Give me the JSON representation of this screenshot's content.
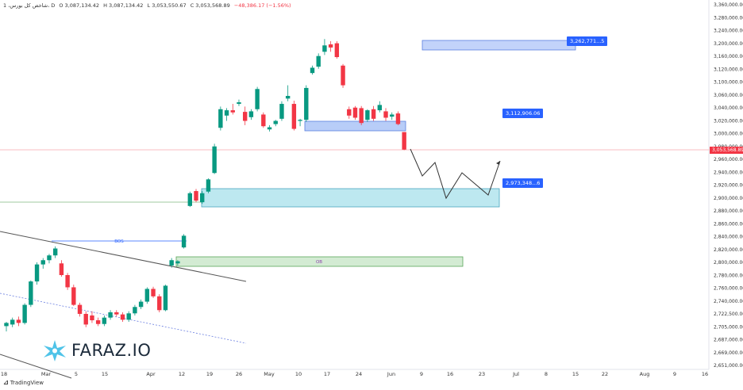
{
  "header": {
    "symbol": "1 ،شاخص کل بورس، D",
    "open": "O 3,087,134.42",
    "high": "H 3,087,134.42",
    "low": "L 3,053,550.67",
    "close": "C 3,053,568.89",
    "change": "−48,386.17 (−1.56%)"
  },
  "footer": {
    "tradingview": "TradingView"
  },
  "brand": {
    "text": "FARAZ.IO"
  },
  "chart_data": {
    "type": "candlestick",
    "y_ticks": [
      "3,360,000.00",
      "3,280,000.00",
      "3,240,000.00",
      "3,200,000.00",
      "3,160,000.00",
      "3,120,000.00",
      "3,100,000.00",
      "3,060,000.00",
      "3,040,000.00",
      "3,020,000.00",
      "3,000,000.00",
      "2,980,000.00",
      "2,960,000.00",
      "2,940,000.00",
      "2,920,000.00",
      "2,900,000.00",
      "2,880,000.00",
      "2,860,000.00",
      "2,840,000.00",
      "2,820,000.00",
      "2,800,000.00",
      "2,780,000.00",
      "2,760,000.00",
      "2,740,000.00",
      "2,722,500.00",
      "2,705,000.00",
      "2,687,000.00",
      "2,669,000.00",
      "2,651,000.00"
    ],
    "x_ticks": [
      "18",
      "Mar",
      "5",
      "15",
      "Apr",
      "12",
      "19",
      "26",
      "May",
      "10",
      "17",
      "24",
      "Jun",
      "9",
      "16",
      "23",
      "Jul",
      "8",
      "15",
      "22",
      "Aug",
      "9",
      "16"
    ],
    "last_price": "3,053,568.89",
    "labels": {
      "target_high": "3,262,771...5",
      "target_mid": "3,112,906.06",
      "target_low": "2,973,348...6",
      "bos": "BOS",
      "ob": "OB"
    },
    "colors": {
      "up": "#089981",
      "down": "#f23645",
      "zone_blue": "#b8cdf8",
      "zone_cyan": "#b6e7ef",
      "zone_green": "#cfe9cf",
      "label": "#2962ff"
    },
    "candles": [
      {
        "o": 2722,
        "h": 2730,
        "l": 2712,
        "c": 2728
      },
      {
        "o": 2725,
        "h": 2738,
        "l": 2720,
        "c": 2734
      },
      {
        "o": 2734,
        "h": 2740,
        "l": 2722,
        "c": 2728
      },
      {
        "o": 2728,
        "h": 2765,
        "l": 2725,
        "c": 2762
      },
      {
        "o": 2762,
        "h": 2808,
        "l": 2758,
        "c": 2806
      },
      {
        "o": 2806,
        "h": 2842,
        "l": 2800,
        "c": 2838
      },
      {
        "o": 2838,
        "h": 2850,
        "l": 2830,
        "c": 2846
      },
      {
        "o": 2846,
        "h": 2858,
        "l": 2840,
        "c": 2855
      },
      {
        "o": 2855,
        "h": 2872,
        "l": 2850,
        "c": 2868
      },
      {
        "o": 2840,
        "h": 2846,
        "l": 2815,
        "c": 2818
      },
      {
        "o": 2818,
        "h": 2822,
        "l": 2790,
        "c": 2795
      },
      {
        "o": 2795,
        "h": 2800,
        "l": 2760,
        "c": 2762
      },
      {
        "o": 2762,
        "h": 2766,
        "l": 2740,
        "c": 2745
      },
      {
        "o": 2745,
        "h": 2750,
        "l": 2720,
        "c": 2725
      },
      {
        "o": 2742,
        "h": 2750,
        "l": 2728,
        "c": 2733
      },
      {
        "o": 2733,
        "h": 2738,
        "l": 2722,
        "c": 2726
      },
      {
        "o": 2726,
        "h": 2742,
        "l": 2722,
        "c": 2738
      },
      {
        "o": 2738,
        "h": 2752,
        "l": 2734,
        "c": 2748
      },
      {
        "o": 2748,
        "h": 2752,
        "l": 2740,
        "c": 2744
      },
      {
        "o": 2744,
        "h": 2748,
        "l": 2730,
        "c": 2734
      },
      {
        "o": 2734,
        "h": 2750,
        "l": 2730,
        "c": 2746
      },
      {
        "o": 2746,
        "h": 2762,
        "l": 2742,
        "c": 2758
      },
      {
        "o": 2758,
        "h": 2772,
        "l": 2754,
        "c": 2768
      },
      {
        "o": 2768,
        "h": 2795,
        "l": 2764,
        "c": 2792
      },
      {
        "o": 2792,
        "h": 2796,
        "l": 2775,
        "c": 2778
      },
      {
        "o": 2778,
        "h": 2782,
        "l": 2748,
        "c": 2752
      },
      {
        "o": 2752,
        "h": 2800,
        "l": 2750,
        "c": 2798
      },
      {
        "o": 2836,
        "h": 2850,
        "l": 2832,
        "c": 2846
      },
      {
        "o": 2840,
        "h": 2846,
        "l": 2836,
        "c": 2844
      },
      {
        "o": 2870,
        "h": 2895,
        "l": 2868,
        "c": 2892
      },
      {
        "o": 2948,
        "h": 2975,
        "l": 2946,
        "c": 2972
      },
      {
        "o": 2976,
        "h": 2980,
        "l": 2955,
        "c": 2958
      },
      {
        "o": 2955,
        "h": 2976,
        "l": 2952,
        "c": 2972
      },
      {
        "o": 2975,
        "h": 3000,
        "l": 2972,
        "c": 2998
      },
      {
        "o": 3010,
        "h": 3065,
        "l": 3008,
        "c": 3060
      },
      {
        "o": 3095,
        "h": 3135,
        "l": 3090,
        "c": 3130
      },
      {
        "o": 3118,
        "h": 3132,
        "l": 3108,
        "c": 3128
      },
      {
        "o": 3128,
        "h": 3140,
        "l": 3120,
        "c": 3124
      },
      {
        "o": 3140,
        "h": 3148,
        "l": 3136,
        "c": 3143
      },
      {
        "o": 3125,
        "h": 3135,
        "l": 3100,
        "c": 3108
      },
      {
        "o": 3115,
        "h": 3130,
        "l": 3110,
        "c": 3126
      },
      {
        "o": 3130,
        "h": 3172,
        "l": 3126,
        "c": 3168
      },
      {
        "o": 3120,
        "h": 3124,
        "l": 3095,
        "c": 3098
      },
      {
        "o": 3092,
        "h": 3100,
        "l": 3088,
        "c": 3096
      },
      {
        "o": 3102,
        "h": 3110,
        "l": 3098,
        "c": 3108
      },
      {
        "o": 3112,
        "h": 3145,
        "l": 3108,
        "c": 3140
      },
      {
        "o": 3150,
        "h": 3175,
        "l": 3145,
        "c": 3155
      },
      {
        "o": 3140,
        "h": 3146,
        "l": 3090,
        "c": 3093
      },
      {
        "o": 3108,
        "h": 3112,
        "l": 3098,
        "c": 3110
      },
      {
        "o": 3110,
        "h": 3175,
        "l": 3106,
        "c": 3170
      },
      {
        "o": 3198,
        "h": 3212,
        "l": 3195,
        "c": 3208
      },
      {
        "o": 3210,
        "h": 3235,
        "l": 3206,
        "c": 3230
      },
      {
        "o": 3238,
        "h": 3262,
        "l": 3232,
        "c": 3250
      },
      {
        "o": 3252,
        "h": 3258,
        "l": 3238,
        "c": 3246
      },
      {
        "o": 3254,
        "h": 3258,
        "l": 3225,
        "c": 3228
      },
      {
        "o": 3212,
        "h": 3215,
        "l": 3170,
        "c": 3175
      },
      {
        "o": 3130,
        "h": 3135,
        "l": 3112,
        "c": 3118
      },
      {
        "o": 3133,
        "h": 3136,
        "l": 3110,
        "c": 3114
      },
      {
        "o": 3132,
        "h": 3136,
        "l": 3100,
        "c": 3104
      },
      {
        "o": 3110,
        "h": 3130,
        "l": 3106,
        "c": 3128
      },
      {
        "o": 3130,
        "h": 3136,
        "l": 3108,
        "c": 3112
      },
      {
        "o": 3128,
        "h": 3145,
        "l": 3124,
        "c": 3138
      },
      {
        "o": 3126,
        "h": 3132,
        "l": 3108,
        "c": 3114
      },
      {
        "o": 3116,
        "h": 3124,
        "l": 3110,
        "c": 3120
      },
      {
        "o": 3122,
        "h": 3126,
        "l": 3100,
        "c": 3102
      },
      {
        "o": 3087,
        "h": 3087,
        "l": 3053,
        "c": 3054
      }
    ]
  }
}
